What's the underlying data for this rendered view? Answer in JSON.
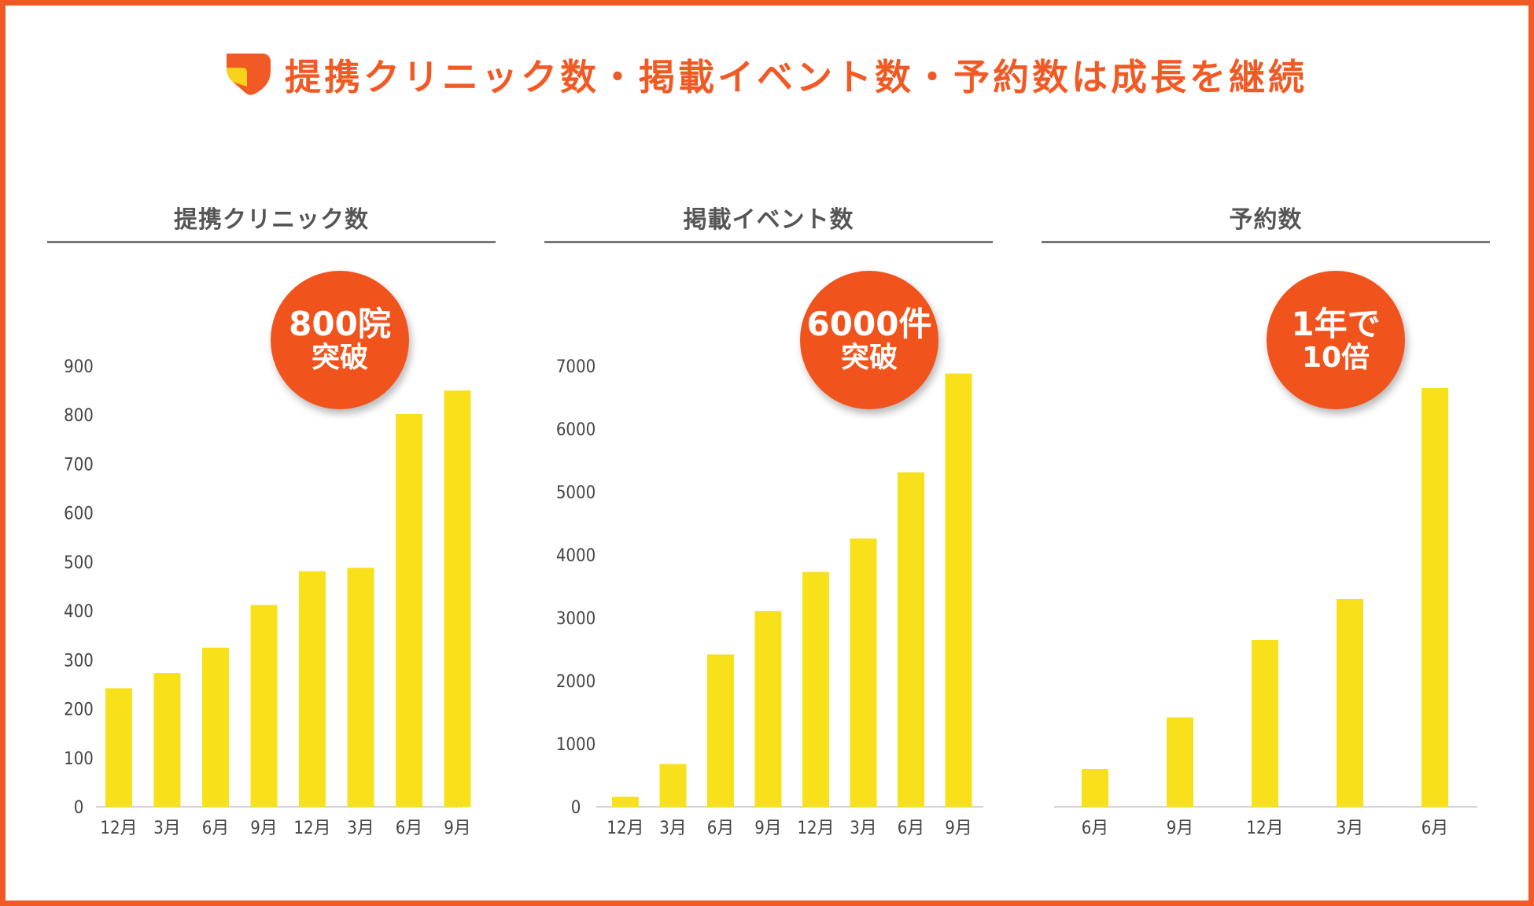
{
  "title": "提携クリニック数・掲載イベント数・予約数は成長を継続",
  "colors": {
    "accent": "#f15a24",
    "bar": "#f8e11b",
    "badge": "#f1531c"
  },
  "chart_data": [
    {
      "type": "bar",
      "title": "提携クリニック数",
      "categories": [
        "12月",
        "3月",
        "6月",
        "9月",
        "12月",
        "3月",
        "6月",
        "9月"
      ],
      "values": [
        242,
        273,
        325,
        412,
        481,
        488,
        802,
        850
      ],
      "ylim": [
        0,
        900
      ],
      "yticks": [
        0,
        100,
        200,
        300,
        400,
        500,
        600,
        700,
        800,
        900
      ],
      "show_y_axis": true,
      "badge": {
        "line1": "800院",
        "line2": "突破"
      }
    },
    {
      "type": "bar",
      "title": "掲載イベント数",
      "categories": [
        "12月",
        "3月",
        "6月",
        "9月",
        "12月",
        "3月",
        "6月",
        "9月"
      ],
      "values": [
        160,
        680,
        2420,
        3110,
        3730,
        4260,
        5310,
        6880
      ],
      "ylim": [
        0,
        7000
      ],
      "yticks": [
        0,
        1000,
        2000,
        3000,
        4000,
        5000,
        6000,
        7000
      ],
      "show_y_axis": true,
      "badge": {
        "line1": "6000件",
        "line2": "突破"
      }
    },
    {
      "type": "bar",
      "title": "予約数",
      "categories": [
        "6月",
        "9月",
        "12月",
        "3月",
        "6月"
      ],
      "values": [
        600,
        1420,
        2650,
        3300,
        6650
      ],
      "ylim": [
        0,
        7000
      ],
      "yticks": [],
      "show_y_axis": false,
      "badge": {
        "line1": "1年で",
        "line2": "10倍"
      }
    }
  ]
}
